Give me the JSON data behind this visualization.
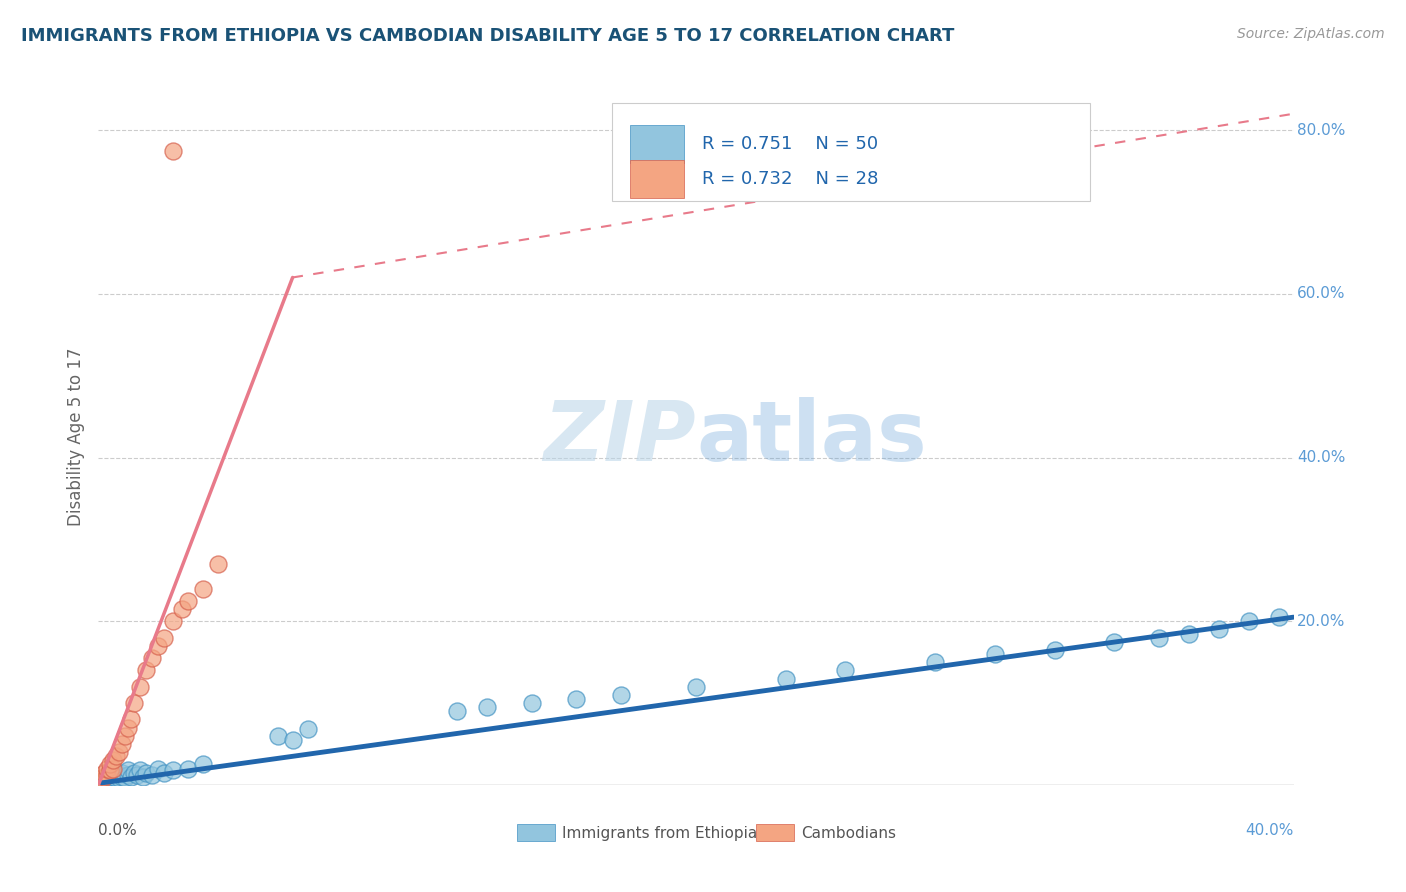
{
  "title": "IMMIGRANTS FROM ETHIOPIA VS CAMBODIAN DISABILITY AGE 5 TO 17 CORRELATION CHART",
  "source": "Source: ZipAtlas.com",
  "ylabel": "Disability Age 5 to 17",
  "xlim": [
    0.0,
    0.4
  ],
  "ylim": [
    0.0,
    0.85
  ],
  "blue_color": "#92c5de",
  "blue_edge_color": "#4393c3",
  "pink_color": "#f4a582",
  "pink_edge_color": "#d6604d",
  "blue_line_color": "#2166ac",
  "pink_line_color": "#e87a8a",
  "title_color": "#1a5276",
  "legend_text_color": "#2166ac",
  "legend_label1": "Immigrants from Ethiopia",
  "legend_label2": "Cambodians",
  "blue_scatter_x": [
    0.001,
    0.002,
    0.002,
    0.003,
    0.003,
    0.004,
    0.004,
    0.005,
    0.005,
    0.006,
    0.006,
    0.007,
    0.007,
    0.008,
    0.008,
    0.009,
    0.01,
    0.01,
    0.011,
    0.012,
    0.013,
    0.014,
    0.015,
    0.016,
    0.018,
    0.02,
    0.022,
    0.025,
    0.03,
    0.035,
    0.06,
    0.065,
    0.07,
    0.12,
    0.13,
    0.145,
    0.16,
    0.175,
    0.2,
    0.23,
    0.25,
    0.28,
    0.3,
    0.32,
    0.34,
    0.355,
    0.365,
    0.375,
    0.385,
    0.395
  ],
  "blue_scatter_y": [
    0.005,
    0.003,
    0.008,
    0.005,
    0.01,
    0.007,
    0.012,
    0.006,
    0.01,
    0.008,
    0.012,
    0.009,
    0.013,
    0.01,
    0.015,
    0.008,
    0.012,
    0.018,
    0.01,
    0.015,
    0.012,
    0.018,
    0.01,
    0.015,
    0.012,
    0.02,
    0.015,
    0.018,
    0.02,
    0.025,
    0.06,
    0.055,
    0.068,
    0.09,
    0.095,
    0.1,
    0.105,
    0.11,
    0.12,
    0.13,
    0.14,
    0.15,
    0.16,
    0.165,
    0.175,
    0.18,
    0.185,
    0.19,
    0.2,
    0.205
  ],
  "pink_scatter_x": [
    0.001,
    0.001,
    0.002,
    0.002,
    0.003,
    0.003,
    0.004,
    0.004,
    0.005,
    0.005,
    0.006,
    0.007,
    0.008,
    0.009,
    0.01,
    0.011,
    0.012,
    0.014,
    0.016,
    0.018,
    0.02,
    0.022,
    0.025,
    0.028,
    0.03,
    0.035,
    0.04,
    0.025
  ],
  "pink_scatter_y": [
    0.005,
    0.008,
    0.01,
    0.015,
    0.012,
    0.02,
    0.018,
    0.025,
    0.02,
    0.03,
    0.035,
    0.04,
    0.05,
    0.06,
    0.07,
    0.08,
    0.1,
    0.12,
    0.14,
    0.155,
    0.17,
    0.18,
    0.2,
    0.215,
    0.225,
    0.24,
    0.27,
    0.775
  ],
  "blue_line_x": [
    0.0,
    0.4
  ],
  "blue_line_y": [
    0.002,
    0.205
  ],
  "pink_solid_line_x": [
    0.0,
    0.065
  ],
  "pink_solid_line_y": [
    0.0,
    0.62
  ],
  "pink_dashed_line_x": [
    0.065,
    0.4
  ],
  "pink_dashed_line_y": [
    0.62,
    0.82
  ]
}
